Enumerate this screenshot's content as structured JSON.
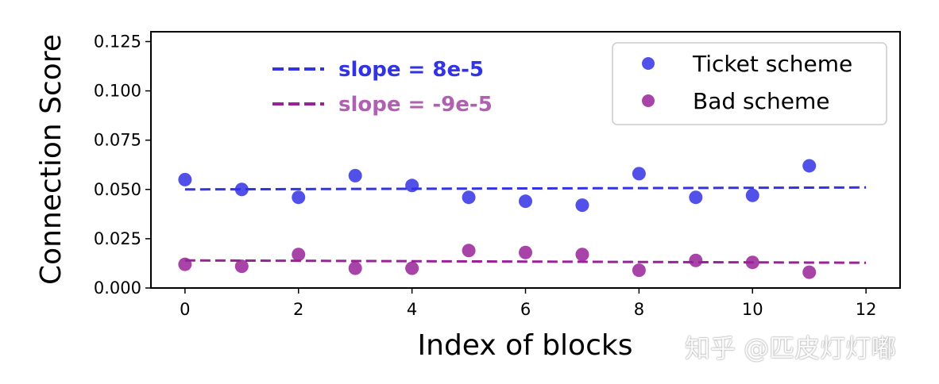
{
  "chart_data": {
    "type": "scatter",
    "xlabel": "Index of blocks",
    "ylabel": "Connection Score",
    "xlim": [
      -0.6,
      12.6
    ],
    "ylim": [
      0.0,
      0.13
    ],
    "xticks": [
      "0",
      "2",
      "4",
      "6",
      "8",
      "10",
      "12"
    ],
    "yticks": [
      "0.000",
      "0.025",
      "0.050",
      "0.075",
      "0.100",
      "0.125"
    ],
    "legend_position": "top-right",
    "series": [
      {
        "name": "Ticket scheme",
        "color": "#3333e6",
        "x": [
          0,
          1,
          2,
          3,
          4,
          5,
          6,
          7,
          8,
          9,
          10,
          11
        ],
        "values": [
          0.055,
          0.05,
          0.046,
          0.057,
          0.052,
          0.046,
          0.044,
          0.042,
          0.058,
          0.046,
          0.047,
          0.062
        ],
        "fit": {
          "label": "slope = 8e-5",
          "x": [
            0,
            12
          ],
          "y": [
            0.05,
            0.051
          ]
        }
      },
      {
        "name": "Bad scheme",
        "color": "#992299",
        "x": [
          0,
          1,
          2,
          3,
          4,
          5,
          6,
          7,
          8,
          9,
          10,
          11
        ],
        "values": [
          0.012,
          0.011,
          0.017,
          0.01,
          0.01,
          0.019,
          0.018,
          0.017,
          0.009,
          0.014,
          0.013,
          0.008
        ],
        "fit": {
          "label": "slope = -9e-5",
          "x": [
            0,
            12
          ],
          "y": [
            0.014,
            0.0128
          ]
        }
      }
    ]
  },
  "watermark": "知乎 @匹皮灯灯嘟"
}
